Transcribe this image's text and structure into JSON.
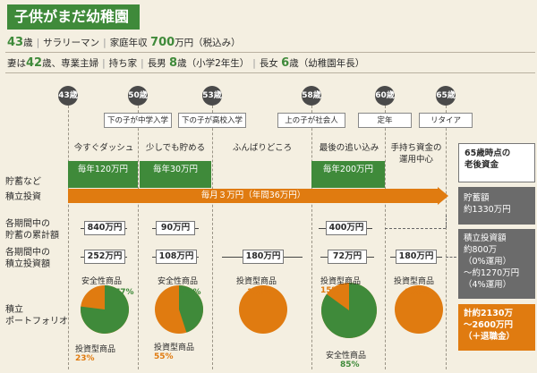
{
  "title": "子供がまだ幼稚園",
  "profile": {
    "age_num": "43",
    "age_unit": "歳",
    "job": "サラリーマン",
    "income_label": "家庭年収",
    "income_num": "700",
    "income_unit": "万円（税込み）",
    "wife_prefix": "妻は",
    "wife_age_num": "42",
    "wife_suffix": "歳、専業主婦",
    "house": "持ち家",
    "son_label": "長男",
    "son_num": "8",
    "son_suffix": "歳（小学2年生）",
    "daughter_label": "長女",
    "daughter_num": "6",
    "daughter_suffix": "歳（幼稚園年長）"
  },
  "ages": [
    "43歳",
    "50歳",
    "53歳",
    "58歳",
    "60歳",
    "65歳"
  ],
  "events": [
    "下の子が中学入学",
    "下の子が高校入学",
    "上の子が社会人",
    "定年",
    "リタイア"
  ],
  "phases": [
    "今すぐダッシュ",
    "少しでも貯める",
    "ふんばりどころ",
    "最後の追い込み",
    "手持ち資金の",
    "運用中心"
  ],
  "rows": {
    "savings": "貯蓄など",
    "invest": "積立投資",
    "cum_savings_1": "各期間中の",
    "cum_savings_2": "貯蓄の累計額",
    "cum_invest_1": "各期間中の",
    "cum_invest_2": "積立投資額",
    "portfolio_1": "積立",
    "portfolio_2": "ポートフォリオ"
  },
  "savings_bars": [
    "毎年120万円",
    "毎年30万円",
    "毎年200万円"
  ],
  "invest_bar": "毎月３万円（年間36万円）",
  "cum_savings": [
    "840万円",
    "90万円",
    "400万円"
  ],
  "cum_invest": [
    "252万円",
    "108万円",
    "180万円",
    "72万円",
    "180万円"
  ],
  "portfolios": [
    {
      "safe_label": "安全性商品",
      "safe_pct": "77%",
      "risk_label": "投資型商品",
      "risk_pct": "23%",
      "safe": 77
    },
    {
      "safe_label": "安全性商品",
      "safe_pct": "45%",
      "risk_label": "投資型商品",
      "risk_pct": "55%",
      "safe": 45
    },
    {
      "risk_label": "投資型商品",
      "risk_pct": "100%",
      "safe": 0
    },
    {
      "risk_label": "投資型商品",
      "risk_pct": "15%",
      "safe_label": "安全性商品",
      "safe_pct": "85%",
      "safe": 85
    },
    {
      "risk_label": "投資型商品",
      "risk_pct": "100%",
      "safe": 0
    }
  ],
  "side": {
    "head_1": "65歳時点の",
    "head_2": "老後資金",
    "savings_1": "貯蓄額",
    "savings_2": "約1330万円",
    "invest_1": "積立投資額",
    "invest_2": "約800万",
    "invest_3": "（0%運用）",
    "invest_4": "～約1270万円",
    "invest_5": "（4%運用）",
    "total_1": "計約2130万",
    "total_2": "～2600万円",
    "total_3": "（＋退職金）"
  },
  "colors": {
    "green": "#3f8a3a",
    "orange": "#e07b10",
    "dark": "#4a4a4a",
    "gray": "#6b6b6b"
  }
}
